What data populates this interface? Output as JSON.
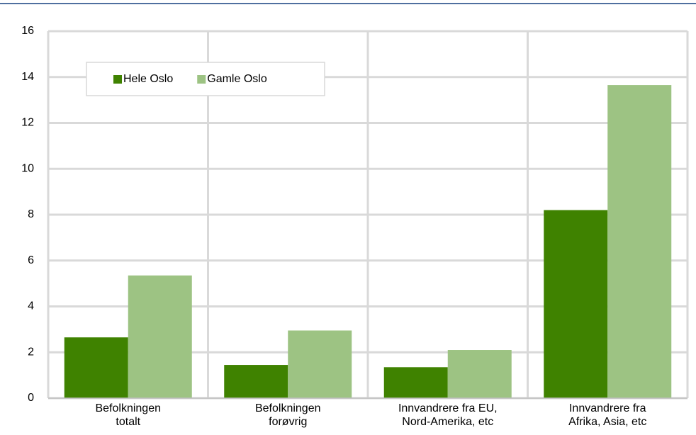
{
  "chart_data": {
    "type": "bar",
    "categories": [
      "Befolkningen\ntotalt",
      "Befolkningen\nforøvrig",
      "Innvandrere fra EU,\nNord-Amerika, etc",
      "Innvandrere fra\nAfrika, Asia, etc"
    ],
    "series": [
      {
        "name": "Hele Oslo",
        "color": "#3f8200",
        "values": [
          2.65,
          1.45,
          1.35,
          8.2
        ]
      },
      {
        "name": "Gamle Oslo",
        "color": "#9dc383",
        "values": [
          5.35,
          2.95,
          2.1,
          13.65
        ]
      }
    ],
    "ylim": [
      0,
      16
    ],
    "yticks": [
      0,
      2,
      4,
      6,
      8,
      10,
      12,
      14,
      16
    ],
    "grid": true
  }
}
